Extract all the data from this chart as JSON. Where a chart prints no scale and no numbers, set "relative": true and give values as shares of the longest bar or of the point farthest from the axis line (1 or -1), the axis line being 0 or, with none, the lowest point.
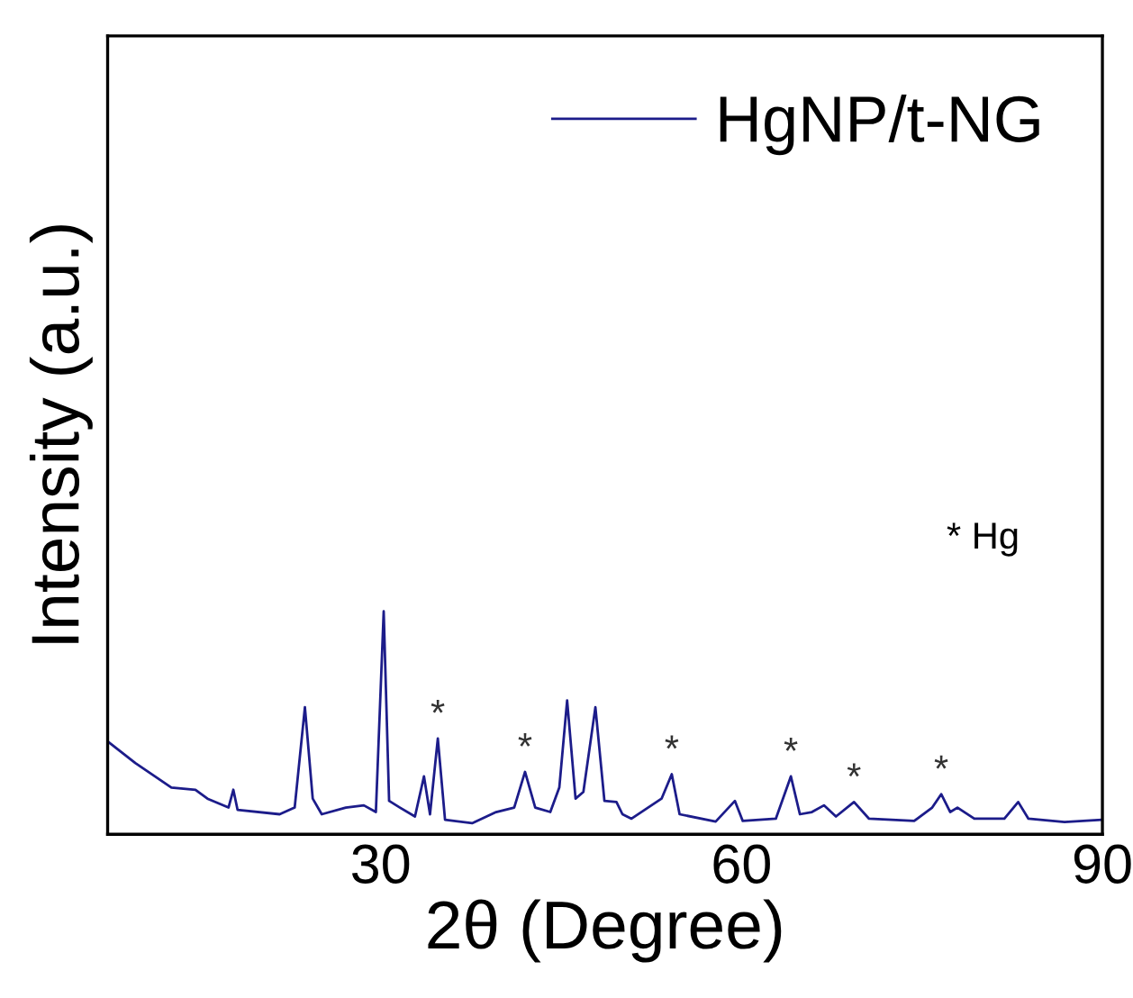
{
  "chart_data": {
    "type": "line",
    "xlabel": "2θ (Degree)",
    "ylabel": "Intensity (a.u.)",
    "relative": true,
    "xlim": [
      7.3,
      90
    ],
    "xticks": [
      30,
      60,
      90
    ],
    "legend": "top right",
    "grid": false,
    "series": [
      {
        "name": "HgNP/t-NG",
        "color": "#1c1c8a",
        "x": [
          7.35,
          9.6,
          12.6,
          14.6,
          15.6,
          17.35,
          17.75,
          18.1,
          21.6,
          22.85,
          23.7,
          24.35,
          25.1,
          27.1,
          28.6,
          29.6,
          30.25,
          30.7,
          31.6,
          32.85,
          33.6,
          34.1,
          34.75,
          35.35,
          37.6,
          39.6,
          41.1,
          42.0,
          42.85,
          44.1,
          44.85,
          45.5,
          46.2,
          46.85,
          47.85,
          48.6,
          49.6,
          50.1,
          50.85,
          53.35,
          54.2,
          54.85,
          57.85,
          59.45,
          60.1,
          62.85,
          64.1,
          64.85,
          65.85,
          66.85,
          67.85,
          69.35,
          70.6,
          74.35,
          75.85,
          76.6,
          77.35,
          77.95,
          79.35,
          81.85,
          83.0,
          83.85,
          86.85,
          89.85
        ],
        "values": [
          0.415,
          0.32,
          0.21,
          0.2,
          0.16,
          0.12,
          0.2,
          0.11,
          0.09,
          0.12,
          0.57,
          0.16,
          0.09,
          0.12,
          0.13,
          0.1,
          1.0,
          0.15,
          0.12,
          0.08,
          0.26,
          0.09,
          0.43,
          0.065,
          0.05,
          0.1,
          0.12,
          0.28,
          0.12,
          0.1,
          0.21,
          0.6,
          0.16,
          0.19,
          0.57,
          0.15,
          0.145,
          0.09,
          0.07,
          0.16,
          0.27,
          0.09,
          0.057,
          0.15,
          0.06,
          0.07,
          0.26,
          0.09,
          0.1,
          0.13,
          0.08,
          0.145,
          0.07,
          0.06,
          0.12,
          0.18,
          0.1,
          0.12,
          0.07,
          0.07,
          0.145,
          0.07,
          0.055,
          0.065
        ]
      }
    ],
    "annotations": [
      {
        "text": "*",
        "x": 34.75,
        "y": 0.43
      },
      {
        "text": "*",
        "x": 42.0,
        "y": 0.28
      },
      {
        "text": "*",
        "x": 54.2,
        "y": 0.27
      },
      {
        "text": "*",
        "x": 64.1,
        "y": 0.26
      },
      {
        "text": "*",
        "x": 69.35,
        "y": 0.145
      },
      {
        "text": "*",
        "x": 76.6,
        "y": 0.18
      },
      "* Hg"
    ]
  }
}
